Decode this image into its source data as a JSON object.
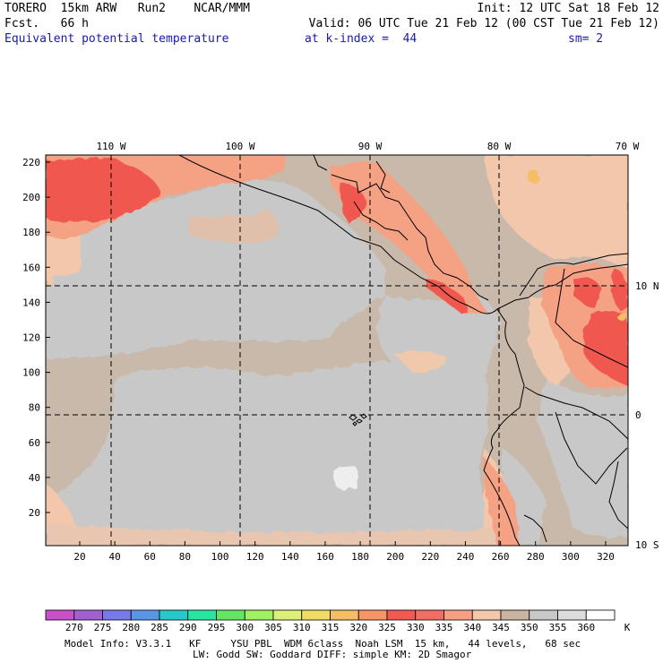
{
  "header": {
    "model": "TORERO  15km ARW   Run2    NCAR/MMM",
    "init": "Init: 12 UTC Sat 18 Feb 12",
    "fcst": "Fcst.   66 h",
    "valid": "Valid: 06 UTC Tue 21 Feb 12 (00 CST Tue 21 Feb 12)",
    "field": "Equivalent potential temperature",
    "kindex": "at k-index =  44",
    "sm": "sm= 2"
  },
  "map": {
    "top_lon_labels": [
      "110 W",
      "100 W",
      "90 W",
      "80 W",
      "70 W"
    ],
    "right_lat_labels": [
      "10 N",
      "0",
      "10 S"
    ],
    "x_ticks": [
      "20",
      "40",
      "60",
      "80",
      "100",
      "120",
      "140",
      "160",
      "180",
      "200",
      "220",
      "240",
      "260",
      "280",
      "300",
      "320"
    ],
    "y_ticks": [
      "220",
      "200",
      "180",
      "160",
      "140",
      "120",
      "100",
      "80",
      "60",
      "40",
      "20"
    ]
  },
  "colorbar": {
    "levels": [
      "270",
      "275",
      "280",
      "285",
      "290",
      "295",
      "300",
      "305",
      "310",
      "315",
      "320",
      "325",
      "330",
      "335",
      "340",
      "345",
      "350",
      "355",
      "360"
    ],
    "unit": "K",
    "colors": [
      "#c850c8",
      "#a060d0",
      "#7878e8",
      "#5a96e6",
      "#28c8c8",
      "#28e6a0",
      "#64e664",
      "#a0f064",
      "#dcf078",
      "#f0dc64",
      "#f5be64",
      "#f59664",
      "#f05a50",
      "#f06e64",
      "#f5a082",
      "#f5c8aa",
      "#c8b4a0",
      "#c8c8c8",
      "#dcdcdc",
      "#ffffff"
    ]
  },
  "footer": {
    "line1": "Model Info: V3.3.1   KF     YSU PBL  WDM 6class  Noah LSM  15 km,   44 levels,   68 sec",
    "line2": "LW: Godd SW: Goddard DIFF: simple KM: 2D Smagor"
  }
}
